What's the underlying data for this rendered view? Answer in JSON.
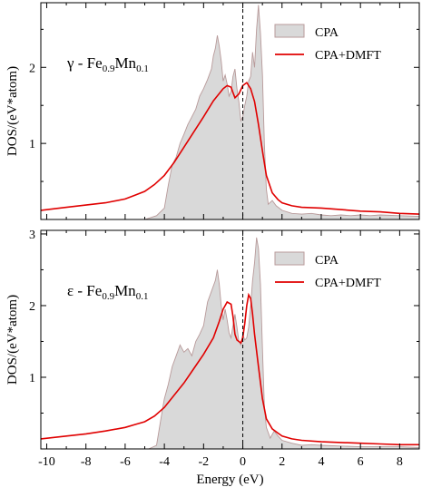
{
  "chart_data": [
    {
      "type": "area",
      "panel": "top",
      "annotation": {
        "prefix": "γ - Fe",
        "sub1": "0.9",
        "mid": "Mn",
        "sub2": "0.1"
      },
      "ylabel": "DOS/(eV*atom)",
      "xlim": [
        -10.3,
        9
      ],
      "ylim": [
        0,
        2.85
      ],
      "yticks": [
        1,
        2
      ],
      "fermi_line_x": 0,
      "legend": {
        "position": "top-right"
      },
      "series": [
        {
          "name": "CPA",
          "style": "filled",
          "color": "#d9d9d9",
          "edge": "#b89a9a",
          "x": [
            -5.0,
            -4.4,
            -4.0,
            -3.8,
            -3.6,
            -3.4,
            -3.2,
            -3.0,
            -2.8,
            -2.6,
            -2.4,
            -2.2,
            -2.0,
            -1.8,
            -1.6,
            -1.5,
            -1.4,
            -1.3,
            -1.2,
            -1.1,
            -1.0,
            -0.9,
            -0.8,
            -0.7,
            -0.6,
            -0.5,
            -0.4,
            -0.3,
            -0.2,
            -0.1,
            0.0,
            0.1,
            0.2,
            0.3,
            0.4,
            0.5,
            0.6,
            0.7,
            0.8,
            0.9,
            1.0,
            1.1,
            1.2,
            1.3,
            1.5,
            1.7,
            2.0,
            2.5,
            3.0,
            3.5,
            4.0,
            4.5,
            5.0,
            5.5,
            6.0,
            6.5,
            7.0,
            8.0,
            9.0
          ],
          "y": [
            0.0,
            0.05,
            0.15,
            0.45,
            0.72,
            0.82,
            1.0,
            1.12,
            1.25,
            1.35,
            1.45,
            1.62,
            1.72,
            1.84,
            1.98,
            2.15,
            2.25,
            2.42,
            2.28,
            2.08,
            1.82,
            1.9,
            1.78,
            1.62,
            1.68,
            1.88,
            1.98,
            1.72,
            1.55,
            1.3,
            1.35,
            1.5,
            1.62,
            1.82,
            1.88,
            2.2,
            2.0,
            2.5,
            2.82,
            2.45,
            1.9,
            1.0,
            0.4,
            0.2,
            0.25,
            0.18,
            0.12,
            0.08,
            0.07,
            0.08,
            0.06,
            0.05,
            0.06,
            0.05,
            0.06,
            0.05,
            0.06,
            0.05,
            0.04
          ]
        },
        {
          "name": "CPA+DMFT",
          "style": "line",
          "color": "#e00000",
          "x": [
            -10.3,
            -9.0,
            -8.0,
            -7.0,
            -6.0,
            -5.5,
            -5.0,
            -4.5,
            -4.0,
            -3.5,
            -3.0,
            -2.5,
            -2.0,
            -1.5,
            -1.0,
            -0.8,
            -0.6,
            -0.5,
            -0.4,
            -0.2,
            0.0,
            0.2,
            0.4,
            0.6,
            0.8,
            1.0,
            1.2,
            1.5,
            1.8,
            2.0,
            2.5,
            3.0,
            4.0,
            5.0,
            6.0,
            7.0,
            8.0,
            9.0
          ],
          "y": [
            0.12,
            0.16,
            0.19,
            0.22,
            0.27,
            0.32,
            0.37,
            0.46,
            0.58,
            0.75,
            0.95,
            1.15,
            1.35,
            1.56,
            1.72,
            1.76,
            1.74,
            1.67,
            1.6,
            1.65,
            1.76,
            1.8,
            1.72,
            1.55,
            1.25,
            0.9,
            0.58,
            0.35,
            0.26,
            0.22,
            0.18,
            0.16,
            0.15,
            0.13,
            0.11,
            0.1,
            0.08,
            0.07
          ]
        }
      ]
    },
    {
      "type": "area",
      "panel": "bottom",
      "annotation": {
        "prefix": "ε - Fe",
        "sub1": "0.9",
        "mid": "Mn",
        "sub2": "0.1"
      },
      "xlabel": "Energy (eV)",
      "ylabel": "DOS/(eV*atom)",
      "xlim": [
        -10.3,
        9
      ],
      "ylim": [
        0,
        3.05
      ],
      "xticks": [
        -10,
        -8,
        -6,
        -4,
        -2,
        0,
        2,
        4,
        6,
        8
      ],
      "yticks": [
        1,
        2,
        3
      ],
      "fermi_line_x": 0,
      "legend": {
        "position": "top-right"
      },
      "series": [
        {
          "name": "CPA",
          "style": "filled",
          "color": "#d9d9d9",
          "edge": "#b89a9a",
          "x": [
            -4.8,
            -4.4,
            -4.1,
            -4.0,
            -3.8,
            -3.6,
            -3.4,
            -3.2,
            -3.0,
            -2.8,
            -2.6,
            -2.4,
            -2.2,
            -2.0,
            -1.8,
            -1.6,
            -1.4,
            -1.3,
            -1.2,
            -1.1,
            -1.0,
            -0.9,
            -0.8,
            -0.7,
            -0.6,
            -0.5,
            -0.4,
            -0.3,
            -0.2,
            -0.1,
            0.0,
            0.1,
            0.2,
            0.3,
            0.4,
            0.5,
            0.6,
            0.7,
            0.8,
            0.9,
            1.0,
            1.1,
            1.2,
            1.4,
            1.6,
            1.8,
            2.0,
            2.5,
            3.0,
            3.5,
            4.0,
            5.0,
            6.0,
            7.0,
            8.0,
            9.0
          ],
          "y": [
            0.0,
            0.05,
            0.55,
            0.7,
            0.9,
            1.15,
            1.3,
            1.45,
            1.35,
            1.4,
            1.3,
            1.5,
            1.6,
            1.72,
            2.05,
            2.2,
            2.35,
            2.5,
            2.3,
            2.0,
            1.8,
            1.95,
            1.8,
            1.62,
            1.55,
            1.72,
            1.88,
            1.7,
            1.5,
            1.45,
            1.6,
            1.52,
            1.55,
            1.7,
            2.0,
            2.35,
            2.6,
            2.95,
            2.8,
            2.3,
            1.4,
            0.6,
            0.3,
            0.15,
            0.25,
            0.18,
            0.12,
            0.08,
            0.05,
            0.06,
            0.05,
            0.04,
            0.03,
            0.03,
            0.03,
            0.02
          ]
        },
        {
          "name": "CPA+DMFT",
          "style": "line",
          "color": "#e00000",
          "x": [
            -10.3,
            -9.0,
            -8.0,
            -7.0,
            -6.0,
            -5.5,
            -5.0,
            -4.5,
            -4.0,
            -3.5,
            -3.0,
            -2.5,
            -2.0,
            -1.5,
            -1.2,
            -1.0,
            -0.8,
            -0.6,
            -0.5,
            -0.4,
            -0.3,
            -0.2,
            -0.1,
            0.0,
            0.1,
            0.2,
            0.3,
            0.4,
            0.5,
            0.6,
            0.8,
            1.0,
            1.2,
            1.5,
            1.8,
            2.0,
            2.5,
            3.0,
            4.0,
            5.0,
            6.0,
            7.0,
            8.0,
            9.0
          ],
          "y": [
            0.14,
            0.18,
            0.21,
            0.25,
            0.3,
            0.34,
            0.38,
            0.46,
            0.58,
            0.75,
            0.92,
            1.12,
            1.32,
            1.55,
            1.78,
            1.95,
            2.05,
            2.02,
            1.85,
            1.6,
            1.52,
            1.5,
            1.48,
            1.55,
            1.75,
            2.0,
            2.15,
            2.1,
            1.88,
            1.6,
            1.15,
            0.7,
            0.42,
            0.28,
            0.22,
            0.18,
            0.14,
            0.12,
            0.1,
            0.09,
            0.08,
            0.07,
            0.06,
            0.06
          ]
        }
      ]
    }
  ]
}
